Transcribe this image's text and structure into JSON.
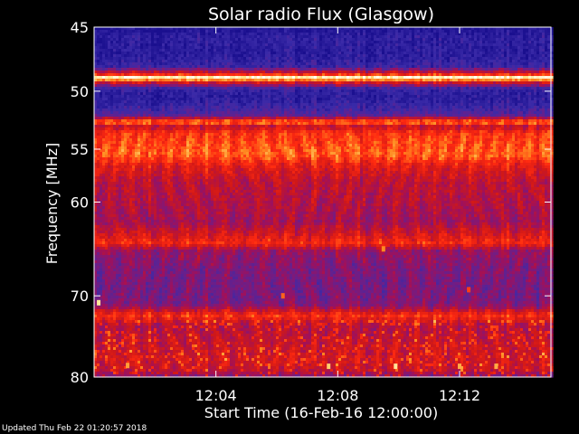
{
  "chart_data": {
    "type": "heatmap",
    "title": "Solar radio Flux (Glasgow)",
    "xlabel": "Start Time (16-Feb-16 12:00:00)",
    "ylabel": "Frequency [MHz]",
    "x_unit": "minutes after 12:00:00",
    "xlim": [
      0,
      15
    ],
    "ylim": [
      45,
      80
    ],
    "x_ticks": [
      {
        "value": 4,
        "label": "12:04"
      },
      {
        "value": 8,
        "label": "12:08"
      },
      {
        "value": 12,
        "label": "12:12"
      }
    ],
    "y_ticks": [
      {
        "value": 45,
        "label": "45"
      },
      {
        "value": 50,
        "label": "50"
      },
      {
        "value": 55,
        "label": "55"
      },
      {
        "value": 60,
        "label": "60"
      },
      {
        "value": 70,
        "label": "70"
      },
      {
        "value": 80,
        "label": "80"
      }
    ],
    "colormap": [
      "#1a0f8f",
      "#3a2aa8",
      "#6a1f8a",
      "#a0105a",
      "#d01818",
      "#ff2a10",
      "#ff8a20",
      "#ffe080",
      "#ffffff"
    ],
    "intensity_bands": [
      {
        "freq": 45.0,
        "intensity": 0.02
      },
      {
        "freq": 45.8,
        "intensity": 0.08
      },
      {
        "freq": 47.0,
        "intensity": 0.06
      },
      {
        "freq": 48.0,
        "intensity": 0.12
      },
      {
        "freq": 48.6,
        "intensity": 0.55
      },
      {
        "freq": 48.9,
        "intensity": 0.98
      },
      {
        "freq": 49.3,
        "intensity": 0.5
      },
      {
        "freq": 49.8,
        "intensity": 0.1
      },
      {
        "freq": 50.5,
        "intensity": 0.07
      },
      {
        "freq": 51.3,
        "intensity": 0.12
      },
      {
        "freq": 52.0,
        "intensity": 0.2
      },
      {
        "freq": 52.6,
        "intensity": 0.75
      },
      {
        "freq": 53.0,
        "intensity": 0.45
      },
      {
        "freq": 53.5,
        "intensity": 0.62
      },
      {
        "freq": 54.5,
        "intensity": 0.66
      },
      {
        "freq": 55.5,
        "intensity": 0.7
      },
      {
        "freq": 56.5,
        "intensity": 0.55
      },
      {
        "freq": 58.0,
        "intensity": 0.45
      },
      {
        "freq": 60.0,
        "intensity": 0.42
      },
      {
        "freq": 62.0,
        "intensity": 0.38
      },
      {
        "freq": 64.2,
        "intensity": 0.6
      },
      {
        "freq": 65.0,
        "intensity": 0.36
      },
      {
        "freq": 67.0,
        "intensity": 0.3
      },
      {
        "freq": 69.0,
        "intensity": 0.28
      },
      {
        "freq": 71.0,
        "intensity": 0.3
      },
      {
        "freq": 72.3,
        "intensity": 0.62
      },
      {
        "freq": 73.5,
        "intensity": 0.42
      },
      {
        "freq": 75.5,
        "intensity": 0.47
      },
      {
        "freq": 77.5,
        "intensity": 0.5
      },
      {
        "freq": 79.0,
        "intensity": 0.48
      },
      {
        "freq": 80.0,
        "intensity": 0.3
      }
    ],
    "bursts": [
      {
        "time": 0.15,
        "freq": 70.8,
        "intensity": 0.9
      },
      {
        "time": 1.1,
        "freq": 78.5,
        "intensity": 0.78
      },
      {
        "time": 7.7,
        "freq": 78.6,
        "intensity": 0.85
      },
      {
        "time": 9.9,
        "freq": 78.6,
        "intensity": 0.9
      },
      {
        "time": 12.0,
        "freq": 78.6,
        "intensity": 0.8
      },
      {
        "time": 13.2,
        "freq": 78.6,
        "intensity": 0.8
      },
      {
        "time": 9.5,
        "freq": 64.8,
        "intensity": 0.75
      },
      {
        "time": 6.2,
        "freq": 70.0,
        "intensity": 0.7
      },
      {
        "time": 12.3,
        "freq": 69.3,
        "intensity": 0.65
      }
    ],
    "grid": false
  },
  "footer": {
    "updated": "Updated Thu Feb 22 01:20:57 2018"
  }
}
